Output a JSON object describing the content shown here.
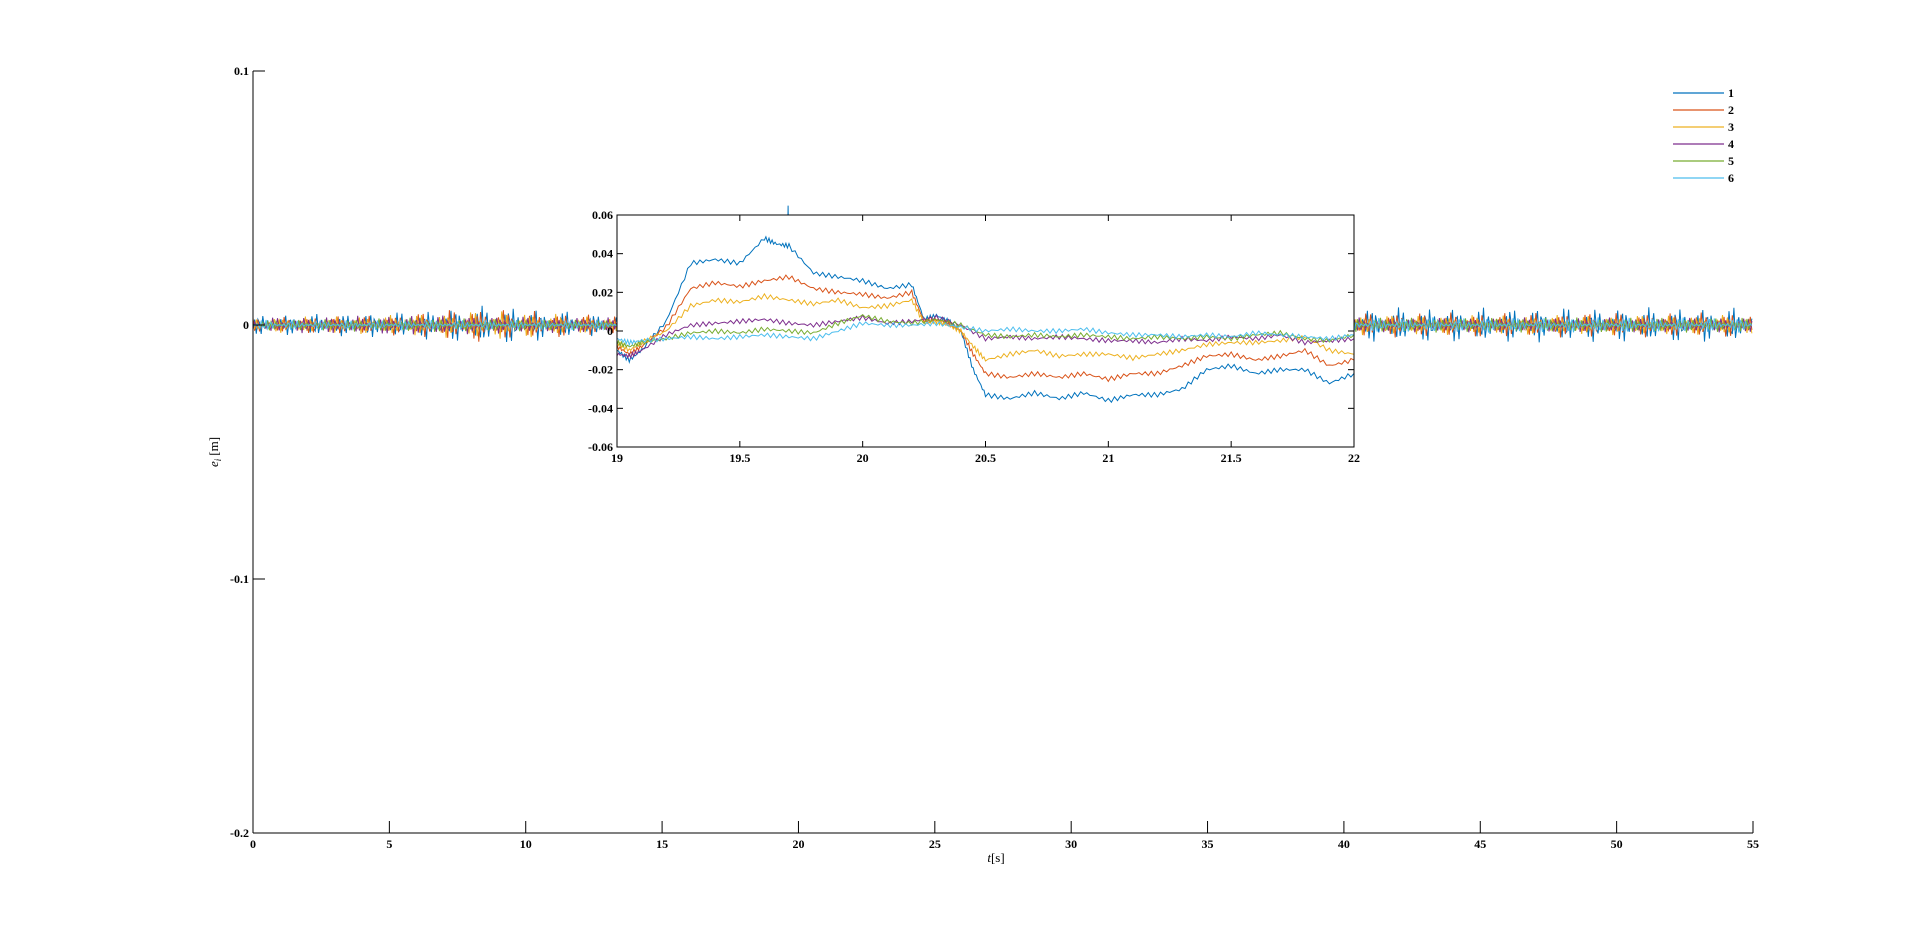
{
  "chart_data": [
    {
      "id": "main",
      "type": "line",
      "xlabel_italic": "t",
      "xlabel_unit": "[s]",
      "ylabel_italic": "e",
      "ylabel_sub": "i",
      "ylabel_unit": "[m]",
      "xlim": [
        0,
        55
      ],
      "ylim": [
        -0.2,
        0.1
      ],
      "x_ticks": [
        0,
        5,
        10,
        15,
        20,
        25,
        30,
        35,
        40,
        45,
        50,
        55
      ],
      "x_tick_labels": [
        "0",
        "5",
        "10",
        "15",
        "20",
        "25",
        "30",
        "35",
        "40",
        "45",
        "50",
        "55"
      ],
      "y_ticks": [
        0.1,
        0,
        -0.1,
        -0.2
      ],
      "y_tick_labels": [
        "0.1",
        "0",
        "-0.1",
        "-0.2"
      ],
      "grid": false,
      "legend_position": "top-right",
      "series": [
        {
          "name": "1",
          "color": "#0072BD",
          "osc": [
            [
              0,
              0.004
            ],
            [
              5,
              0.005
            ],
            [
              9,
              0.008
            ],
            [
              13,
              0.004
            ],
            [
              25,
              0.004
            ],
            [
              40,
              0.007
            ],
            [
              55,
              0.007
            ]
          ],
          "spike": [
            19.6,
            0.047
          ]
        },
        {
          "name": "2",
          "color": "#D95319",
          "osc": [
            [
              0,
              0.003
            ],
            [
              5,
              0.004
            ],
            [
              8,
              0.007
            ],
            [
              13,
              0.004
            ],
            [
              40,
              0.005
            ],
            [
              55,
              0.005
            ]
          ],
          "spike": null
        },
        {
          "name": "3",
          "color": "#EDB120",
          "osc": [
            [
              0,
              0.003
            ],
            [
              5,
              0.004
            ],
            [
              9,
              0.006
            ],
            [
              13,
              0.003
            ],
            [
              40,
              0.004
            ],
            [
              55,
              0.004
            ]
          ],
          "spike": null
        },
        {
          "name": "4",
          "color": "#7E2F8E",
          "osc": [
            [
              0,
              0.003
            ],
            [
              6,
              0.004
            ],
            [
              13,
              0.003
            ],
            [
              40,
              0.003
            ],
            [
              55,
              0.003
            ]
          ],
          "spike": null
        },
        {
          "name": "5",
          "color": "#77AC30",
          "osc": [
            [
              0,
              0.002
            ],
            [
              6,
              0.003
            ],
            [
              13,
              0.002
            ],
            [
              40,
              0.003
            ],
            [
              55,
              0.003
            ]
          ],
          "spike": null
        },
        {
          "name": "6",
          "color": "#4DBEEE",
          "osc": [
            [
              0,
              0.002
            ],
            [
              13,
              0.002
            ],
            [
              40,
              0.003
            ],
            [
              55,
              0.003
            ]
          ],
          "spike": null
        }
      ]
    },
    {
      "id": "inset",
      "type": "line",
      "xlim": [
        19,
        22
      ],
      "ylim": [
        -0.06,
        0.06
      ],
      "x_ticks": [
        19,
        19.5,
        20,
        20.5,
        21,
        21.5,
        22
      ],
      "x_tick_labels": [
        "19",
        "19.5",
        "20",
        "20.5",
        "21",
        "21.5",
        "22"
      ],
      "y_ticks": [
        0.06,
        0.04,
        0.02,
        0,
        -0.02,
        -0.04,
        -0.06
      ],
      "y_tick_labels": [
        "0.06",
        "0.04",
        "0.02",
        "0",
        "-0.02",
        "-0.04",
        "-0.06"
      ],
      "grid": false,
      "series": [
        {
          "name": "1",
          "color": "#0072BD",
          "x": [
            19,
            19.05,
            19.1,
            19.2,
            19.3,
            19.4,
            19.5,
            19.6,
            19.65,
            19.7,
            19.8,
            19.9,
            20,
            20.1,
            20.2,
            20.25,
            20.3,
            20.35,
            20.4,
            20.45,
            20.5,
            20.6,
            20.7,
            20.8,
            20.9,
            21,
            21.1,
            21.2,
            21.3,
            21.4,
            21.5,
            21.6,
            21.7,
            21.8,
            21.9,
            22
          ],
          "y": [
            -0.01,
            -0.015,
            -0.01,
            0.005,
            0.035,
            0.037,
            0.035,
            0.048,
            0.045,
            0.044,
            0.03,
            0.028,
            0.026,
            0.022,
            0.024,
            0.006,
            0.008,
            0.005,
            0.0,
            -0.02,
            -0.033,
            -0.035,
            -0.032,
            -0.035,
            -0.032,
            -0.036,
            -0.033,
            -0.033,
            -0.03,
            -0.02,
            -0.018,
            -0.022,
            -0.02,
            -0.02,
            -0.027,
            -0.022
          ]
        },
        {
          "name": "2",
          "color": "#D95319",
          "x": [
            19,
            19.05,
            19.1,
            19.2,
            19.3,
            19.4,
            19.5,
            19.6,
            19.7,
            19.8,
            19.9,
            20,
            20.1,
            20.2,
            20.25,
            20.3,
            20.35,
            20.4,
            20.45,
            20.5,
            20.6,
            20.7,
            20.8,
            20.9,
            21,
            21.1,
            21.2,
            21.3,
            21.4,
            21.5,
            21.6,
            21.7,
            21.8,
            21.9,
            22
          ],
          "y": [
            -0.008,
            -0.012,
            -0.008,
            0.002,
            0.022,
            0.025,
            0.023,
            0.026,
            0.028,
            0.022,
            0.02,
            0.019,
            0.017,
            0.02,
            0.005,
            0.006,
            0.004,
            0.0,
            -0.012,
            -0.022,
            -0.024,
            -0.022,
            -0.024,
            -0.022,
            -0.025,
            -0.022,
            -0.022,
            -0.018,
            -0.013,
            -0.012,
            -0.015,
            -0.013,
            -0.01,
            -0.018,
            -0.015
          ]
        },
        {
          "name": "3",
          "color": "#EDB120",
          "x": [
            19,
            19.05,
            19.1,
            19.2,
            19.3,
            19.4,
            19.5,
            19.6,
            19.7,
            19.8,
            19.9,
            20,
            20.1,
            20.2,
            20.25,
            20.3,
            20.35,
            20.4,
            20.45,
            20.5,
            20.6,
            20.7,
            20.8,
            20.9,
            21,
            21.1,
            21.2,
            21.3,
            21.4,
            21.5,
            21.6,
            21.7,
            21.8,
            21.9,
            22
          ],
          "y": [
            -0.006,
            -0.01,
            -0.006,
            0.0,
            0.013,
            0.016,
            0.015,
            0.018,
            0.016,
            0.014,
            0.016,
            0.012,
            0.013,
            0.016,
            0.004,
            0.005,
            0.003,
            0.0,
            -0.008,
            -0.015,
            -0.012,
            -0.01,
            -0.013,
            -0.012,
            -0.012,
            -0.014,
            -0.012,
            -0.01,
            -0.007,
            -0.006,
            -0.006,
            -0.005,
            -0.003,
            -0.01,
            -0.012
          ]
        },
        {
          "name": "4",
          "color": "#7E2F8E",
          "x": [
            19,
            19.05,
            19.1,
            19.2,
            19.3,
            19.4,
            19.5,
            19.6,
            19.7,
            19.8,
            19.9,
            20,
            20.1,
            20.2,
            20.3,
            20.4,
            20.5,
            20.6,
            20.7,
            20.8,
            20.9,
            21,
            21.1,
            21.2,
            21.3,
            21.4,
            21.5,
            21.6,
            21.7,
            21.8,
            21.9,
            22
          ],
          "y": [
            -0.012,
            -0.013,
            -0.01,
            -0.002,
            0.003,
            0.004,
            0.005,
            0.006,
            0.004,
            0.003,
            0.005,
            0.007,
            0.004,
            0.005,
            0.007,
            0.003,
            -0.004,
            -0.003,
            -0.004,
            -0.003,
            -0.004,
            -0.005,
            -0.005,
            -0.006,
            -0.004,
            -0.005,
            -0.003,
            -0.004,
            -0.002,
            -0.006,
            -0.005,
            -0.004
          ]
        },
        {
          "name": "5",
          "color": "#77AC30",
          "x": [
            19,
            19.05,
            19.1,
            19.2,
            19.3,
            19.4,
            19.5,
            19.6,
            19.7,
            19.8,
            19.9,
            20,
            20.1,
            20.2,
            20.3,
            20.4,
            20.5,
            20.6,
            20.7,
            20.8,
            20.9,
            21,
            21.1,
            21.2,
            21.3,
            21.4,
            21.5,
            21.6,
            21.7,
            21.8,
            21.9,
            22
          ],
          "y": [
            -0.006,
            -0.008,
            -0.006,
            -0.004,
            -0.001,
            0.0,
            -0.001,
            0.001,
            0.0,
            -0.001,
            0.004,
            0.008,
            0.005,
            0.004,
            0.006,
            0.003,
            -0.002,
            -0.003,
            -0.002,
            -0.003,
            -0.002,
            -0.003,
            -0.004,
            -0.003,
            -0.004,
            -0.003,
            -0.004,
            -0.002,
            -0.001,
            -0.004,
            -0.005,
            -0.002
          ]
        },
        {
          "name": "6",
          "color": "#4DBEEE",
          "x": [
            19,
            19.05,
            19.1,
            19.2,
            19.3,
            19.4,
            19.5,
            19.6,
            19.7,
            19.8,
            19.9,
            20,
            20.1,
            20.2,
            20.3,
            20.4,
            20.5,
            20.6,
            20.7,
            20.8,
            20.9,
            21,
            21.1,
            21.2,
            21.3,
            21.4,
            21.5,
            21.6,
            21.7,
            21.8,
            21.9,
            22
          ],
          "y": [
            -0.004,
            -0.006,
            -0.005,
            -0.004,
            -0.003,
            -0.004,
            -0.003,
            -0.002,
            -0.003,
            -0.004,
            0.0,
            0.004,
            0.003,
            0.003,
            0.004,
            0.002,
            0.0,
            0.001,
            0.0,
            0.0,
            0.001,
            -0.001,
            -0.002,
            -0.002,
            -0.003,
            -0.002,
            -0.003,
            -0.001,
            -0.002,
            -0.003,
            -0.004,
            -0.002
          ]
        }
      ]
    }
  ]
}
